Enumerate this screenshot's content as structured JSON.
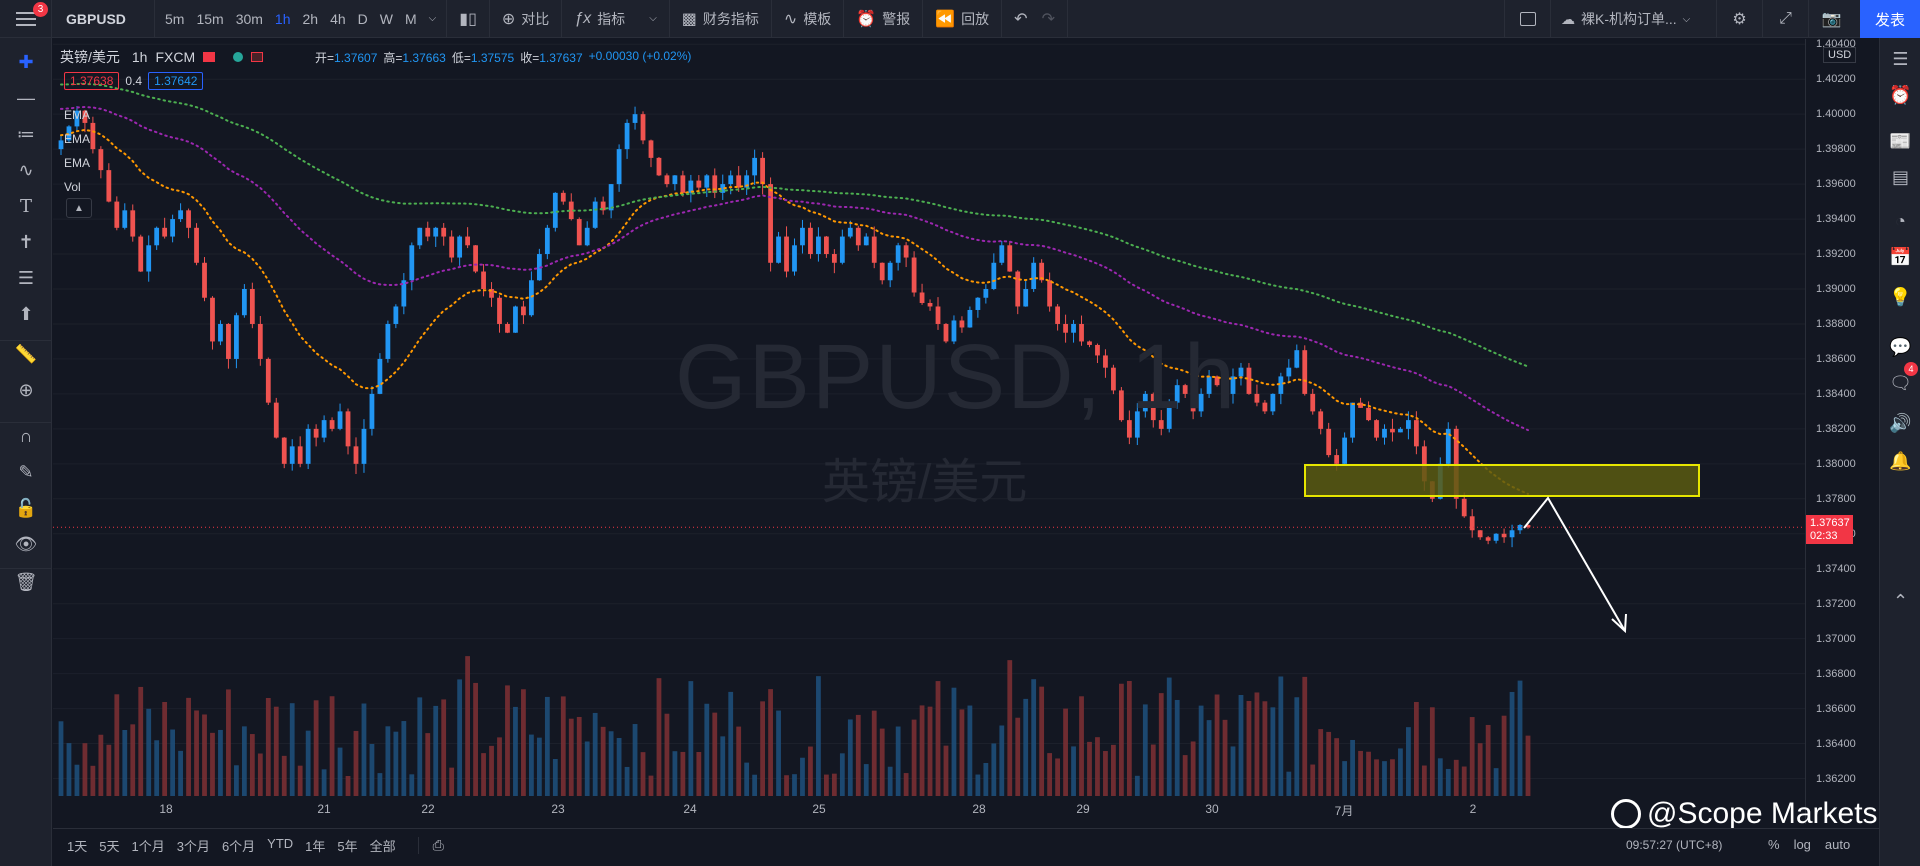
{
  "topbar": {
    "menu_badge": "3",
    "symbol": "GBPUSD",
    "intervals": [
      "5m",
      "15m",
      "30m",
      "1h",
      "2h",
      "4h",
      "D",
      "W",
      "M"
    ],
    "active_interval": "1h",
    "compare_label": "对比",
    "indicators_label": "指标",
    "financials_label": "财务指标",
    "templates_label": "模板",
    "alert_label": "警报",
    "replay_label": "回放",
    "layout_name": "裸K-机构订单...",
    "publish_label": "发表"
  },
  "legend": {
    "symbol_name": "英镑/美元",
    "interval": "1h",
    "exchange": "FXCM",
    "open_label": "开=",
    "open": "1.37607",
    "high_label": "高=",
    "high": "1.37663",
    "low_label": "低=",
    "low": "1.37575",
    "close_label": "收=",
    "close": "1.37637",
    "change": "+0.00030 (+0.02%)",
    "bid": "1.37638",
    "spread": "0.4",
    "ask": "1.37642",
    "indicators": [
      "EMA",
      "EMA",
      "EMA",
      "Vol"
    ]
  },
  "watermark": {
    "line1": "GBPUSD, 1h",
    "line2": "英镑/美元"
  },
  "price_axis": {
    "currency": "USD",
    "labels": [
      "1.40400",
      "1.40200",
      "1.40000",
      "1.39800",
      "1.39600",
      "1.39400",
      "1.39200",
      "1.39000",
      "1.38800",
      "1.38600",
      "1.38400",
      "1.38200",
      "1.38000",
      "1.37800",
      "1.37600",
      "1.37400",
      "1.37200",
      "1.37000",
      "1.36800",
      "1.36600",
      "1.36400",
      "1.36200"
    ],
    "last_price": "1.37637",
    "countdown": "02:33"
  },
  "time_axis": {
    "labels": [
      "18",
      "21",
      "22",
      "23",
      "24",
      "25",
      "28",
      "29",
      "30",
      "7月",
      "2"
    ]
  },
  "bottombar": {
    "ranges": [
      "1天",
      "5天",
      "1个月",
      "3个月",
      "6个月",
      "YTD",
      "1年",
      "5年",
      "全部"
    ],
    "clock": "09:57:27 (UTC+8)",
    "percent_label": "%",
    "log_label": "log",
    "auto_label": "auto"
  },
  "brand": {
    "text": "@Scope Markets"
  },
  "right_sidebar": {
    "chat_badge": "4"
  },
  "colors": {
    "bg": "#131722",
    "panel": "#1e222d",
    "up": "#2196f3",
    "down": "#ef5350",
    "ema_fast": "#ff9800",
    "ema_mid": "#9c27b0",
    "ema_slow": "#4caf50",
    "zone": "#e6e600",
    "accent": "#2962ff"
  },
  "chart_data": {
    "type": "candlestick",
    "symbol": "GBPUSD",
    "interval": "1h",
    "ylim": [
      1.361,
      1.4043
    ],
    "last_price": 1.37637,
    "closes": [
      1.3985,
      1.3993,
      1.4002,
      1.3995,
      1.398,
      1.3968,
      1.395,
      1.3935,
      1.3945,
      1.393,
      1.391,
      1.3925,
      1.3935,
      1.393,
      1.394,
      1.3945,
      1.3935,
      1.3915,
      1.3895,
      1.387,
      1.388,
      1.386,
      1.3885,
      1.39,
      1.388,
      1.386,
      1.3835,
      1.3815,
      1.38,
      1.381,
      1.38,
      1.382,
      1.3815,
      1.3825,
      1.382,
      1.383,
      1.381,
      1.38,
      1.382,
      1.384,
      1.386,
      1.388,
      1.389,
      1.3905,
      1.3925,
      1.3935,
      1.393,
      1.3935,
      1.393,
      1.3918,
      1.393,
      1.3925,
      1.391,
      1.39,
      1.3895,
      1.388,
      1.3875,
      1.389,
      1.3885,
      1.3905,
      1.392,
      1.3935,
      1.3955,
      1.395,
      1.394,
      1.3925,
      1.3935,
      1.395,
      1.3945,
      1.396,
      1.398,
      1.3995,
      1.4,
      1.3985,
      1.3975,
      1.3965,
      1.396,
      1.3965,
      1.3955,
      1.3962,
      1.3958,
      1.3965,
      1.3955,
      1.396,
      1.3965,
      1.3958,
      1.3965,
      1.3975,
      1.396,
      1.3915,
      1.393,
      1.391,
      1.3925,
      1.3935,
      1.392,
      1.393,
      1.392,
      1.3915,
      1.393,
      1.3935,
      1.3925,
      1.393,
      1.3915,
      1.3905,
      1.3915,
      1.3925,
      1.3918,
      1.3898,
      1.3892,
      1.389,
      1.388,
      1.387,
      1.3882,
      1.3878,
      1.3888,
      1.3895,
      1.39,
      1.3915,
      1.3925,
      1.391,
      1.389,
      1.39,
      1.3915,
      1.3905,
      1.389,
      1.388,
      1.3875,
      1.388,
      1.387,
      1.3868,
      1.3862,
      1.3855,
      1.3842,
      1.3825,
      1.3815,
      1.383,
      1.384,
      1.3825,
      1.382,
      1.3835,
      1.3845,
      1.384,
      1.383,
      1.384,
      1.385,
      1.3845,
      1.384,
      1.385,
      1.3855,
      1.384,
      1.3835,
      1.383,
      1.384,
      1.385,
      1.3855,
      1.3865,
      1.384,
      1.383,
      1.382,
      1.3805,
      1.38,
      1.3815,
      1.3835,
      1.3832,
      1.3825,
      1.3815,
      1.382,
      1.3818,
      1.382,
      1.3825,
      1.381,
      1.379,
      1.378,
      1.38,
      1.382,
      1.378,
      1.377,
      1.3762,
      1.3758,
      1.3756,
      1.376,
      1.3758,
      1.3762,
      1.3765,
      1.37637
    ]
  }
}
